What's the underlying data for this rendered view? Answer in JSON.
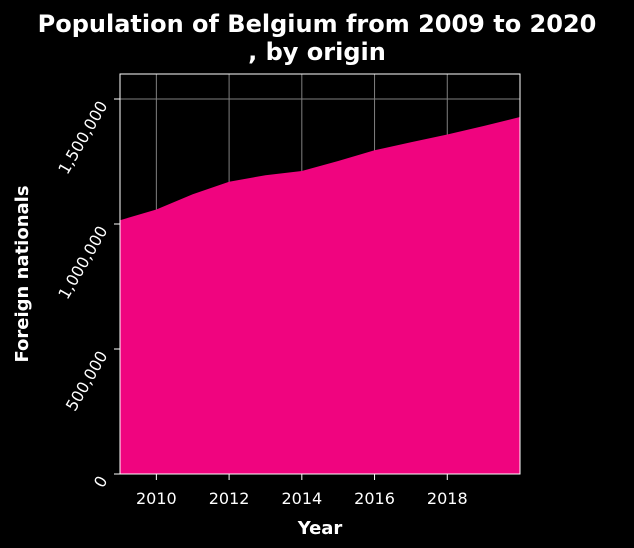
{
  "chart_data": {
    "type": "area",
    "title_lines": [
      "Population of Belgium from 2009 to 2020",
      ", by origin"
    ],
    "xlabel": "Year",
    "ylabel": "Foreign nationals",
    "xlim": [
      2009,
      2020
    ],
    "ylim": [
      0,
      1600000
    ],
    "x_ticks": [
      2010,
      2012,
      2014,
      2016,
      2018
    ],
    "y_ticks": [
      0,
      500000,
      1000000,
      1500000
    ],
    "y_tick_labels": [
      "0",
      "500,000",
      "1,000,000",
      "1,500,000"
    ],
    "grid": true,
    "series": [
      {
        "name": "Foreign nationals",
        "color": "#f0047f",
        "x": [
          2009,
          2010,
          2011,
          2012,
          2013,
          2014,
          2015,
          2016,
          2017,
          2018,
          2019,
          2020
        ],
        "values": [
          1015000,
          1058000,
          1119000,
          1169000,
          1195000,
          1212000,
          1252000,
          1295000,
          1327000,
          1358000,
          1392000,
          1428000
        ]
      }
    ]
  },
  "colors": {
    "background": "#000000",
    "plot_background": "#000000",
    "grid": "#808080",
    "text": "#ffffff"
  }
}
